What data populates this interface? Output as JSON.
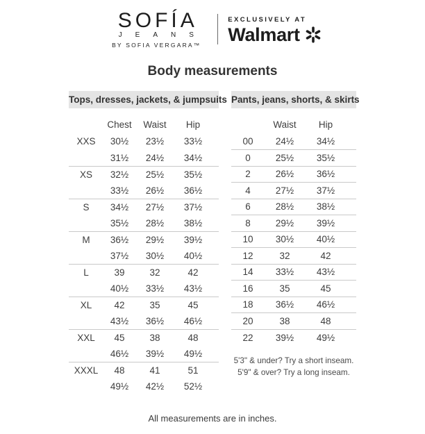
{
  "colors": {
    "ink": "#3d3d3d",
    "brand_ink": "#1d1d1d",
    "rule": "#c9c9c9",
    "section_bg": "#e4e4e4"
  },
  "header": {
    "brand": {
      "name": "SOFÍA",
      "sub": "JEANS",
      "byline": "BY SOFIA VERGARA™"
    },
    "exclusively_at": "EXCLUSIVELY AT",
    "walmart": "Walmart",
    "spark_icon": "walmart-spark"
  },
  "title": "Body measurements",
  "tables": {
    "tops": {
      "section_label": "Tops, dresses, jackets, & jumpsuits",
      "columns": [
        "",
        "Chest",
        "Waist",
        "Hip"
      ],
      "groups": [
        {
          "size": "XXS",
          "rows": [
            [
              "30½",
              "23½",
              "33½"
            ],
            [
              "31½",
              "24½",
              "34½"
            ]
          ]
        },
        {
          "size": "XS",
          "rows": [
            [
              "32½",
              "25½",
              "35½"
            ],
            [
              "33½",
              "26½",
              "36½"
            ]
          ]
        },
        {
          "size": "S",
          "rows": [
            [
              "34½",
              "27½",
              "37½"
            ],
            [
              "35½",
              "28½",
              "38½"
            ]
          ]
        },
        {
          "size": "M",
          "rows": [
            [
              "36½",
              "29½",
              "39½"
            ],
            [
              "37½",
              "30½",
              "40½"
            ]
          ]
        },
        {
          "size": "L",
          "rows": [
            [
              "39",
              "32",
              "42"
            ],
            [
              "40½",
              "33½",
              "43½"
            ]
          ]
        },
        {
          "size": "XL",
          "rows": [
            [
              "42",
              "35",
              "45"
            ],
            [
              "43½",
              "36½",
              "46½"
            ]
          ]
        },
        {
          "size": "XXL",
          "rows": [
            [
              "45",
              "38",
              "48"
            ],
            [
              "46½",
              "39½",
              "49½"
            ]
          ]
        },
        {
          "size": "XXXL",
          "rows": [
            [
              "48",
              "41",
              "51"
            ],
            [
              "49½",
              "42½",
              "52½"
            ]
          ]
        }
      ]
    },
    "pants": {
      "section_label": "Pants, jeans, shorts, & skirts",
      "columns": [
        "",
        "Waist",
        "Hip"
      ],
      "rows": [
        {
          "size": "00",
          "values": [
            "24½",
            "34½"
          ]
        },
        {
          "size": "0",
          "values": [
            "25½",
            "35½"
          ]
        },
        {
          "size": "2",
          "values": [
            "26½",
            "36½"
          ]
        },
        {
          "size": "4",
          "values": [
            "27½",
            "37½"
          ]
        },
        {
          "size": "6",
          "values": [
            "28½",
            "38½"
          ]
        },
        {
          "size": "8",
          "values": [
            "29½",
            "39½"
          ]
        },
        {
          "size": "10",
          "values": [
            "30½",
            "40½"
          ]
        },
        {
          "size": "12",
          "values": [
            "32",
            "42"
          ]
        },
        {
          "size": "14",
          "values": [
            "33½",
            "43½"
          ]
        },
        {
          "size": "16",
          "values": [
            "35",
            "45"
          ]
        },
        {
          "size": "18",
          "values": [
            "36½",
            "46½"
          ]
        },
        {
          "size": "20",
          "values": [
            "38",
            "48"
          ]
        },
        {
          "size": "22",
          "values": [
            "39½",
            "49½"
          ]
        }
      ],
      "notes": [
        "5'3\" & under? Try a short inseam.",
        "5'9\" & over? Try a long inseam."
      ]
    }
  },
  "footer": "All measurements are in inches."
}
